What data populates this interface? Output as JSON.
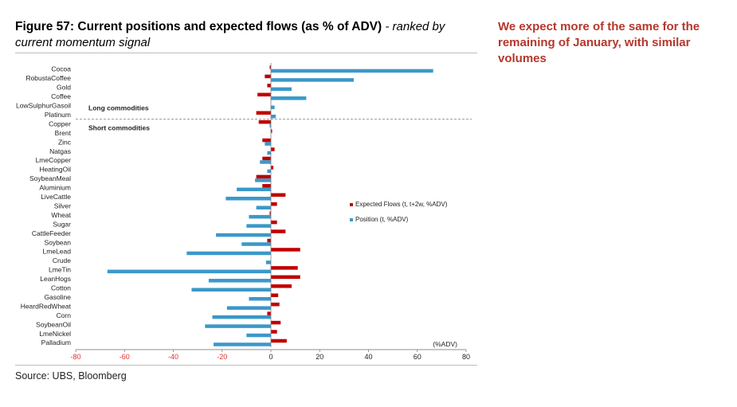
{
  "header": {
    "title": "Figure 57: Current positions and expected flows (as % of ADV)",
    "subtitle": " - ranked by current momentum signal"
  },
  "side_note": "We expect more of the same for the remaining of January, with similar volumes",
  "footer": {
    "source": "Source: UBS, Bloomberg"
  },
  "colors": {
    "expected_flows": "#c00000",
    "position": "#3b98c9",
    "axis_tick_negative": "#e03030",
    "side_note": "#b5372b"
  },
  "chart_data": {
    "type": "bar",
    "orientation": "horizontal",
    "categories": [
      "Cocoa",
      "RobustaCoffee",
      "Gold",
      "Coffee",
      "LowSulphurGasoil",
      "Platinum",
      "Copper",
      "Brent",
      "Zinc",
      "Natgas",
      "LmeCopper",
      "HeatingOil",
      "SoybeanMeal",
      "Aluminium",
      "LiveCattle",
      "Silver",
      "Wheat",
      "Sugar",
      "CattleFeeder",
      "Soybean",
      "LmeLead",
      "Crude",
      "LmeTin",
      "LeanHogs",
      "Cotton",
      "Gasoline",
      "HeardRedWheat",
      "Corn",
      "SoybeanOil",
      "LmeNickel",
      "Palladium"
    ],
    "series": [
      {
        "name": "Expected Flows (t, t+2w, %ADV)",
        "values": [
          -0.5,
          -2.5,
          -1.5,
          -5.5,
          0,
          -6,
          -5,
          0.5,
          -3.5,
          1.5,
          -3.5,
          1,
          -6,
          -3.5,
          6,
          2.5,
          -0.5,
          2.5,
          6,
          -1.5,
          12,
          0,
          11,
          12,
          8.5,
          3,
          3.5,
          -1.5,
          4,
          2.5,
          6.5
        ]
      },
      {
        "name": "Position (t, %ADV)",
        "values": [
          66.5,
          34,
          8.5,
          14.5,
          1.5,
          2,
          -0.5,
          0,
          -2.5,
          -1.5,
          -4.5,
          -1.5,
          -6.5,
          -14,
          -18.5,
          -6,
          -9,
          -10,
          -22.5,
          -12,
          -34.5,
          -2,
          -67,
          -25.5,
          -32.5,
          -9,
          -18,
          -24,
          -27,
          -10,
          -23.5
        ]
      }
    ],
    "xlim": [
      -80,
      80
    ],
    "xticks": [
      -80,
      -60,
      -40,
      -20,
      0,
      20,
      40,
      60,
      80
    ],
    "unit_label": "(%ADV)",
    "annotations": {
      "long": "Long commodities",
      "short": "Short commodities"
    },
    "legend_position": "right-middle",
    "grid": false
  }
}
